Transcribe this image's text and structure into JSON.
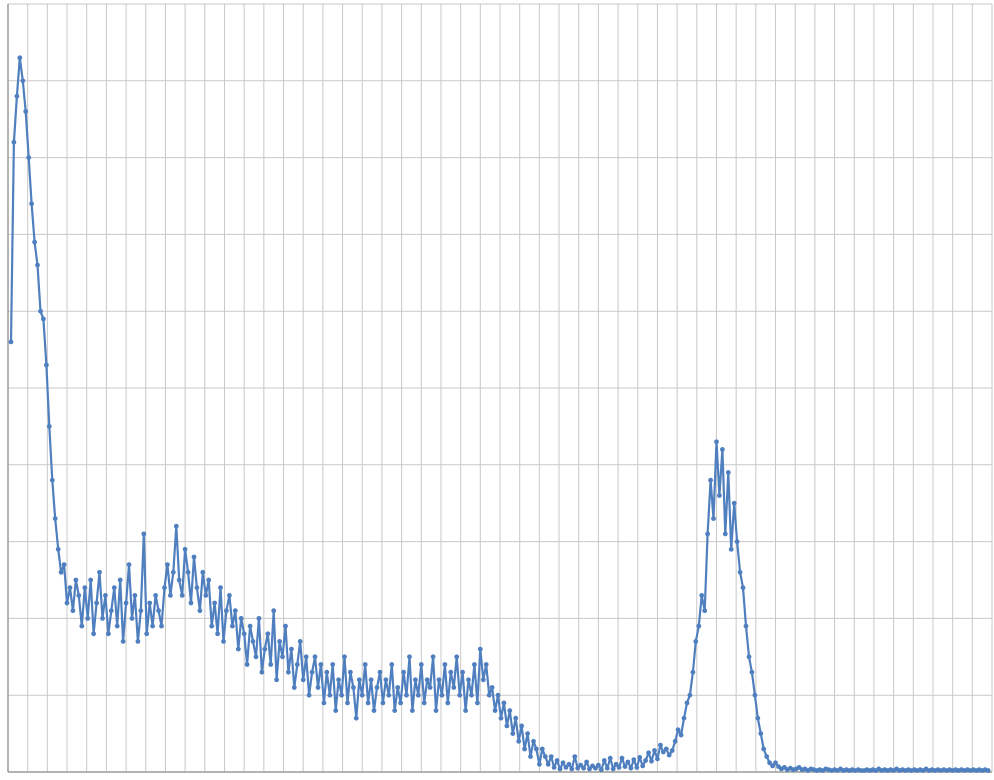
{
  "chart_data": {
    "type": "line",
    "title": "",
    "xlabel": "",
    "ylabel": "",
    "grid": true,
    "legend": "none",
    "marker": "circle",
    "xlim": [
      0,
      100
    ],
    "ylim": [
      0,
      100
    ],
    "line_color": "#4f7fbf",
    "grid_color": "#c8c8c8",
    "series": [
      {
        "values": [
          [
            0.3,
            56
          ],
          [
            0.6,
            82
          ],
          [
            0.9,
            88
          ],
          [
            1.2,
            93
          ],
          [
            1.5,
            90
          ],
          [
            1.8,
            86
          ],
          [
            2.1,
            80
          ],
          [
            2.4,
            74
          ],
          [
            2.7,
            69
          ],
          [
            3.0,
            66
          ],
          [
            3.3,
            60
          ],
          [
            3.6,
            59
          ],
          [
            3.9,
            53
          ],
          [
            4.2,
            45
          ],
          [
            4.5,
            38
          ],
          [
            4.8,
            33
          ],
          [
            5.1,
            29
          ],
          [
            5.4,
            26
          ],
          [
            5.7,
            27
          ],
          [
            6.0,
            22
          ],
          [
            6.3,
            24
          ],
          [
            6.6,
            21
          ],
          [
            6.9,
            25
          ],
          [
            7.2,
            23
          ],
          [
            7.5,
            19
          ],
          [
            7.8,
            24
          ],
          [
            8.1,
            20
          ],
          [
            8.4,
            25
          ],
          [
            8.7,
            18
          ],
          [
            9.0,
            22
          ],
          [
            9.3,
            26
          ],
          [
            9.6,
            20
          ],
          [
            9.9,
            23
          ],
          [
            10.2,
            18
          ],
          [
            10.5,
            21
          ],
          [
            10.8,
            24
          ],
          [
            11.1,
            19
          ],
          [
            11.4,
            25
          ],
          [
            11.7,
            17
          ],
          [
            12.0,
            22
          ],
          [
            12.3,
            27
          ],
          [
            12.6,
            20
          ],
          [
            12.9,
            23
          ],
          [
            13.2,
            17
          ],
          [
            13.5,
            21
          ],
          [
            13.8,
            31
          ],
          [
            14.1,
            18
          ],
          [
            14.4,
            22
          ],
          [
            14.7,
            19
          ],
          [
            15.0,
            23
          ],
          [
            15.3,
            21
          ],
          [
            15.6,
            19
          ],
          [
            15.9,
            24
          ],
          [
            16.2,
            27
          ],
          [
            16.5,
            23
          ],
          [
            16.8,
            26
          ],
          [
            17.1,
            32
          ],
          [
            17.4,
            25
          ],
          [
            17.7,
            23
          ],
          [
            18.0,
            29
          ],
          [
            18.3,
            26
          ],
          [
            18.6,
            22
          ],
          [
            18.9,
            28
          ],
          [
            19.2,
            24
          ],
          [
            19.5,
            21
          ],
          [
            19.8,
            26
          ],
          [
            20.1,
            23
          ],
          [
            20.4,
            25
          ],
          [
            20.7,
            19
          ],
          [
            21.0,
            22
          ],
          [
            21.3,
            18
          ],
          [
            21.6,
            24
          ],
          [
            21.9,
            17
          ],
          [
            22.2,
            21
          ],
          [
            22.5,
            23
          ],
          [
            22.8,
            19
          ],
          [
            23.1,
            21
          ],
          [
            23.4,
            16
          ],
          [
            23.7,
            20
          ],
          [
            24.0,
            18
          ],
          [
            24.3,
            14
          ],
          [
            24.6,
            19
          ],
          [
            24.9,
            17
          ],
          [
            25.2,
            15
          ],
          [
            25.5,
            20
          ],
          [
            25.8,
            13
          ],
          [
            26.1,
            16
          ],
          [
            26.4,
            18
          ],
          [
            26.7,
            14
          ],
          [
            27.0,
            21
          ],
          [
            27.3,
            12
          ],
          [
            27.6,
            17
          ],
          [
            27.9,
            15
          ],
          [
            28.2,
            19
          ],
          [
            28.5,
            13
          ],
          [
            28.8,
            16
          ],
          [
            29.1,
            11
          ],
          [
            29.4,
            14
          ],
          [
            29.7,
            17
          ],
          [
            30.0,
            12
          ],
          [
            30.3,
            15
          ],
          [
            30.6,
            10
          ],
          [
            30.9,
            13
          ],
          [
            31.2,
            15
          ],
          [
            31.5,
            11
          ],
          [
            31.8,
            14
          ],
          [
            32.1,
            9
          ],
          [
            32.4,
            13
          ],
          [
            32.7,
            10
          ],
          [
            33.0,
            14
          ],
          [
            33.3,
            8
          ],
          [
            33.6,
            12
          ],
          [
            33.9,
            10
          ],
          [
            34.2,
            15
          ],
          [
            34.5,
            9
          ],
          [
            34.8,
            13
          ],
          [
            35.1,
            11
          ],
          [
            35.4,
            7
          ],
          [
            35.7,
            12
          ],
          [
            36.0,
            10
          ],
          [
            36.3,
            14
          ],
          [
            36.6,
            9
          ],
          [
            36.9,
            12
          ],
          [
            37.2,
            8
          ],
          [
            37.5,
            11
          ],
          [
            37.8,
            13
          ],
          [
            38.1,
            9
          ],
          [
            38.4,
            12
          ],
          [
            38.7,
            10
          ],
          [
            39.0,
            14
          ],
          [
            39.3,
            8
          ],
          [
            39.6,
            11
          ],
          [
            39.9,
            9
          ],
          [
            40.2,
            13
          ],
          [
            40.5,
            10
          ],
          [
            40.8,
            15
          ],
          [
            41.1,
            8
          ],
          [
            41.4,
            12
          ],
          [
            41.7,
            10
          ],
          [
            42.0,
            14
          ],
          [
            42.3,
            9
          ],
          [
            42.6,
            12
          ],
          [
            42.9,
            11
          ],
          [
            43.2,
            15
          ],
          [
            43.5,
            8
          ],
          [
            43.8,
            12
          ],
          [
            44.1,
            10
          ],
          [
            44.4,
            14
          ],
          [
            44.7,
            9
          ],
          [
            45.0,
            13
          ],
          [
            45.3,
            11
          ],
          [
            45.6,
            15
          ],
          [
            45.9,
            10
          ],
          [
            46.2,
            13
          ],
          [
            46.5,
            8
          ],
          [
            46.8,
            12
          ],
          [
            47.1,
            10
          ],
          [
            47.4,
            14
          ],
          [
            47.7,
            9
          ],
          [
            48.0,
            16
          ],
          [
            48.3,
            12
          ],
          [
            48.6,
            14
          ],
          [
            48.9,
            10
          ],
          [
            49.2,
            11
          ],
          [
            49.5,
            8
          ],
          [
            49.8,
            10
          ],
          [
            50.1,
            7
          ],
          [
            50.4,
            9
          ],
          [
            50.7,
            6
          ],
          [
            51.0,
            8
          ],
          [
            51.3,
            5
          ],
          [
            51.6,
            7
          ],
          [
            51.9,
            4
          ],
          [
            52.2,
            6
          ],
          [
            52.5,
            3
          ],
          [
            52.8,
            5
          ],
          [
            53.1,
            2
          ],
          [
            53.4,
            4
          ],
          [
            53.7,
            3
          ],
          [
            54.0,
            1
          ],
          [
            54.3,
            3
          ],
          [
            54.6,
            2
          ],
          [
            54.9,
            1
          ],
          [
            55.2,
            2
          ],
          [
            55.5,
            0.6
          ],
          [
            55.8,
            1.5
          ],
          [
            56.1,
            0.4
          ],
          [
            56.4,
            1.2
          ],
          [
            56.7,
            0.6
          ],
          [
            57.0,
            1.0
          ],
          [
            57.3,
            0.4
          ],
          [
            57.6,
            2
          ],
          [
            57.9,
            0.5
          ],
          [
            58.2,
            0.9
          ],
          [
            58.5,
            0.5
          ],
          [
            58.8,
            1.3
          ],
          [
            59.1,
            0.4
          ],
          [
            59.4,
            0.8
          ],
          [
            59.7,
            0.5
          ],
          [
            60.0,
            0.9
          ],
          [
            60.3,
            0.3
          ],
          [
            60.6,
            1.5
          ],
          [
            60.9,
            0.5
          ],
          [
            61.2,
            1.8
          ],
          [
            61.5,
            0.4
          ],
          [
            61.8,
            1.0
          ],
          [
            62.1,
            0.6
          ],
          [
            62.4,
            1.8
          ],
          [
            62.7,
            0.7
          ],
          [
            63.0,
            1.3
          ],
          [
            63.3,
            0.5
          ],
          [
            63.6,
            1.6
          ],
          [
            63.9,
            0.6
          ],
          [
            64.2,
            1.9
          ],
          [
            64.5,
            0.8
          ],
          [
            64.8,
            1.5
          ],
          [
            65.1,
            2.5
          ],
          [
            65.4,
            1.4
          ],
          [
            65.7,
            2.8
          ],
          [
            66.0,
            1.7
          ],
          [
            66.3,
            3.5
          ],
          [
            66.6,
            2.6
          ],
          [
            66.9,
            3.0
          ],
          [
            67.2,
            2.2
          ],
          [
            67.5,
            2.8
          ],
          [
            67.8,
            4.0
          ],
          [
            68.1,
            5.5
          ],
          [
            68.4,
            4.8
          ],
          [
            68.7,
            7.0
          ],
          [
            69.0,
            9.0
          ],
          [
            69.3,
            10
          ],
          [
            69.6,
            13
          ],
          [
            69.9,
            17
          ],
          [
            70.2,
            19
          ],
          [
            70.5,
            23
          ],
          [
            70.8,
            21
          ],
          [
            71.1,
            31
          ],
          [
            71.4,
            38
          ],
          [
            71.7,
            33
          ],
          [
            72.0,
            43
          ],
          [
            72.3,
            36
          ],
          [
            72.6,
            42
          ],
          [
            72.9,
            31
          ],
          [
            73.2,
            39
          ],
          [
            73.5,
            29
          ],
          [
            73.8,
            35
          ],
          [
            74.1,
            30
          ],
          [
            74.4,
            26
          ],
          [
            74.7,
            24
          ],
          [
            75.0,
            19
          ],
          [
            75.3,
            15
          ],
          [
            75.6,
            13
          ],
          [
            75.9,
            10
          ],
          [
            76.2,
            7
          ],
          [
            76.5,
            5
          ],
          [
            76.8,
            3
          ],
          [
            77.1,
            2
          ],
          [
            77.4,
            1.2
          ],
          [
            77.7,
            0.8
          ],
          [
            78.0,
            1.2
          ],
          [
            78.3,
            0.7
          ],
          [
            78.6,
            0.4
          ],
          [
            78.9,
            0.6
          ],
          [
            79.2,
            0.3
          ],
          [
            79.5,
            0.5
          ],
          [
            79.8,
            0.3
          ],
          [
            80.1,
            0.4
          ],
          [
            80.4,
            0.6
          ],
          [
            80.7,
            0.3
          ],
          [
            81.0,
            0.4
          ],
          [
            81.3,
            0.2
          ],
          [
            81.6,
            0.4
          ],
          [
            81.9,
            0.3
          ],
          [
            82.2,
            0.2
          ],
          [
            82.5,
            0.3
          ],
          [
            82.8,
            0.2
          ],
          [
            83.1,
            0.4
          ],
          [
            83.4,
            0.3
          ],
          [
            83.7,
            0.2
          ],
          [
            84.0,
            0.3
          ],
          [
            84.3,
            0.2
          ],
          [
            84.6,
            0.4
          ],
          [
            84.9,
            0.2
          ],
          [
            85.2,
            0.3
          ],
          [
            85.5,
            0.2
          ],
          [
            85.8,
            0.3
          ],
          [
            86.1,
            0.2
          ],
          [
            86.4,
            0.3
          ],
          [
            86.7,
            0.2
          ],
          [
            87.0,
            0.2
          ],
          [
            87.3,
            0.3
          ],
          [
            87.6,
            0.2
          ],
          [
            87.9,
            0.3
          ],
          [
            88.2,
            0.2
          ],
          [
            88.5,
            0.4
          ],
          [
            88.8,
            0.2
          ],
          [
            89.1,
            0.3
          ],
          [
            89.4,
            0.2
          ],
          [
            89.7,
            0.3
          ],
          [
            90.0,
            0.2
          ],
          [
            90.3,
            0.4
          ],
          [
            90.6,
            0.2
          ],
          [
            90.9,
            0.3
          ],
          [
            91.2,
            0.2
          ],
          [
            91.5,
            0.3
          ],
          [
            91.8,
            0.2
          ],
          [
            92.1,
            0.3
          ],
          [
            92.4,
            0.2
          ],
          [
            92.7,
            0.3
          ],
          [
            93.0,
            0.2
          ],
          [
            93.3,
            0.4
          ],
          [
            93.6,
            0.2
          ],
          [
            93.9,
            0.3
          ],
          [
            94.2,
            0.2
          ],
          [
            94.5,
            0.3
          ],
          [
            94.8,
            0.2
          ],
          [
            95.1,
            0.3
          ],
          [
            95.4,
            0.2
          ],
          [
            95.7,
            0.3
          ],
          [
            96.0,
            0.2
          ],
          [
            96.3,
            0.3
          ],
          [
            96.6,
            0.2
          ],
          [
            96.9,
            0.3
          ],
          [
            97.2,
            0.2
          ],
          [
            97.5,
            0.3
          ],
          [
            97.8,
            0.2
          ],
          [
            98.1,
            0.3
          ],
          [
            98.4,
            0.2
          ],
          [
            98.7,
            0.3
          ],
          [
            99.0,
            0.2
          ],
          [
            99.3,
            0.3
          ],
          [
            99.6,
            0.2
          ]
        ]
      }
    ]
  }
}
